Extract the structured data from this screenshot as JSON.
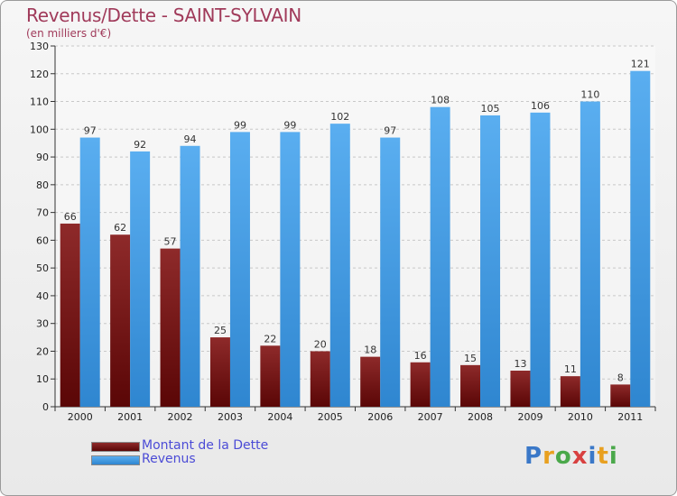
{
  "header": {
    "title": "Revenus/Dette - SAINT-SYLVAIN",
    "subtitle": "(en milliers d'€)"
  },
  "colors": {
    "dette": "#7a1010",
    "revenus": "#3f9fe8",
    "title": "#a03a5a",
    "legend_text": "#4b4bd6"
  },
  "logo": {
    "letters": [
      "P",
      "r",
      "o",
      "x",
      "i",
      "t",
      "i"
    ],
    "colors": [
      "#3a78c8",
      "#e8a020",
      "#4aa84a",
      "#d84040",
      "#3a78c8",
      "#e8a020",
      "#4aa84a"
    ]
  },
  "chart_data": {
    "type": "bar",
    "title": "Revenus/Dette - SAINT-SYLVAIN",
    "subtitle": "(en milliers d'€)",
    "xlabel": "",
    "ylabel": "",
    "ylim": [
      0,
      130
    ],
    "yticks": [
      0,
      10,
      20,
      30,
      40,
      50,
      60,
      70,
      80,
      90,
      100,
      110,
      120,
      130
    ],
    "grid": true,
    "legend_position": "bottom-left",
    "categories": [
      "2000",
      "2001",
      "2002",
      "2003",
      "2004",
      "2005",
      "2006",
      "2007",
      "2008",
      "2009",
      "2010",
      "2011"
    ],
    "series": [
      {
        "name": "Montant de la Dette",
        "values": [
          66,
          62,
          57,
          25,
          22,
          20,
          18,
          16,
          15,
          13,
          11,
          8
        ]
      },
      {
        "name": "Revenus",
        "values": [
          97,
          92,
          94,
          99,
          99,
          102,
          97,
          108,
          105,
          106,
          110,
          121
        ]
      }
    ]
  }
}
